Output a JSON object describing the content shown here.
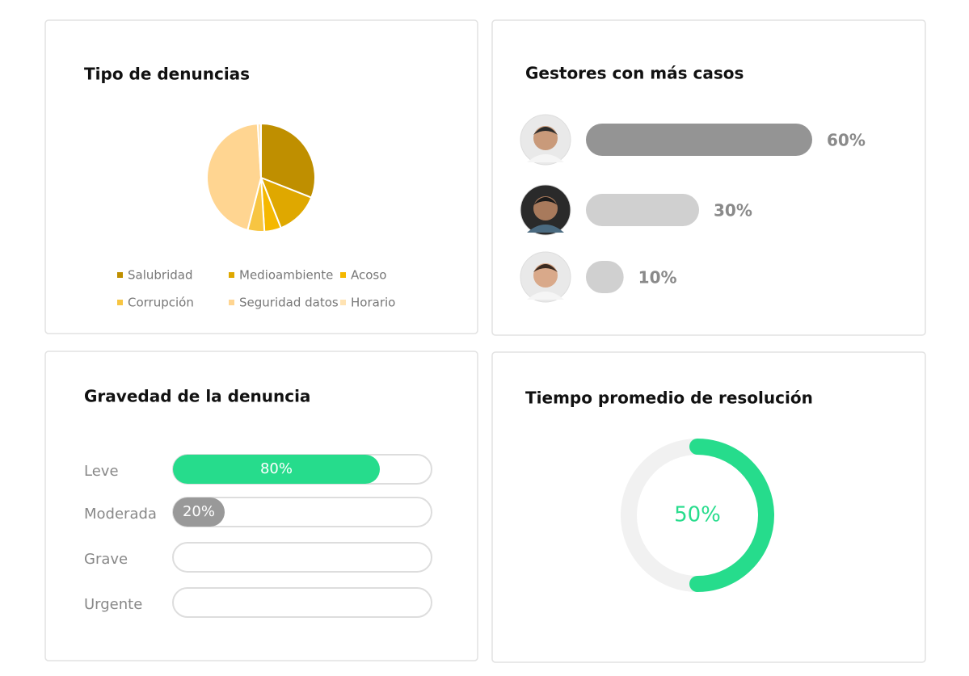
{
  "chart_data": [
    {
      "type": "pie",
      "title": "Tipo de denuncias",
      "categories": [
        "Salubridad",
        "Medioambiente",
        "Acoso",
        "Corrupción",
        "Seguridad datos",
        "Horario"
      ],
      "values": [
        31,
        13,
        5,
        5,
        45,
        1
      ],
      "colors": [
        "#bf8f00",
        "#dfa800",
        "#f5b800",
        "#f7c542",
        "#ffd591",
        "#ffe3b3"
      ]
    },
    {
      "type": "avatar-bar",
      "title": "Gestores con más casos",
      "values": [
        60,
        30,
        10
      ],
      "value_labels": [
        "60%",
        "30%",
        "10%"
      ],
      "colors": [
        "#949494",
        "#d0d0d0",
        "#d0d0d0"
      ]
    },
    {
      "type": "progress",
      "title": "Gravedad de la denuncia",
      "categories": [
        "Leve",
        "Moderada",
        "Grave",
        "Urgente"
      ],
      "values": [
        80,
        20,
        0,
        0
      ],
      "value_labels": [
        "80%",
        "20%",
        null,
        null
      ],
      "colors": [
        "#26dc8c",
        "#999999",
        "#999999",
        "#999999"
      ],
      "xlim": [
        0,
        100
      ]
    },
    {
      "type": "donut",
      "title": "Tiempo promedio de resolución",
      "value": 50,
      "value_label": "50%",
      "color": "#26dc8c",
      "xlim": [
        0,
        100
      ]
    }
  ]
}
